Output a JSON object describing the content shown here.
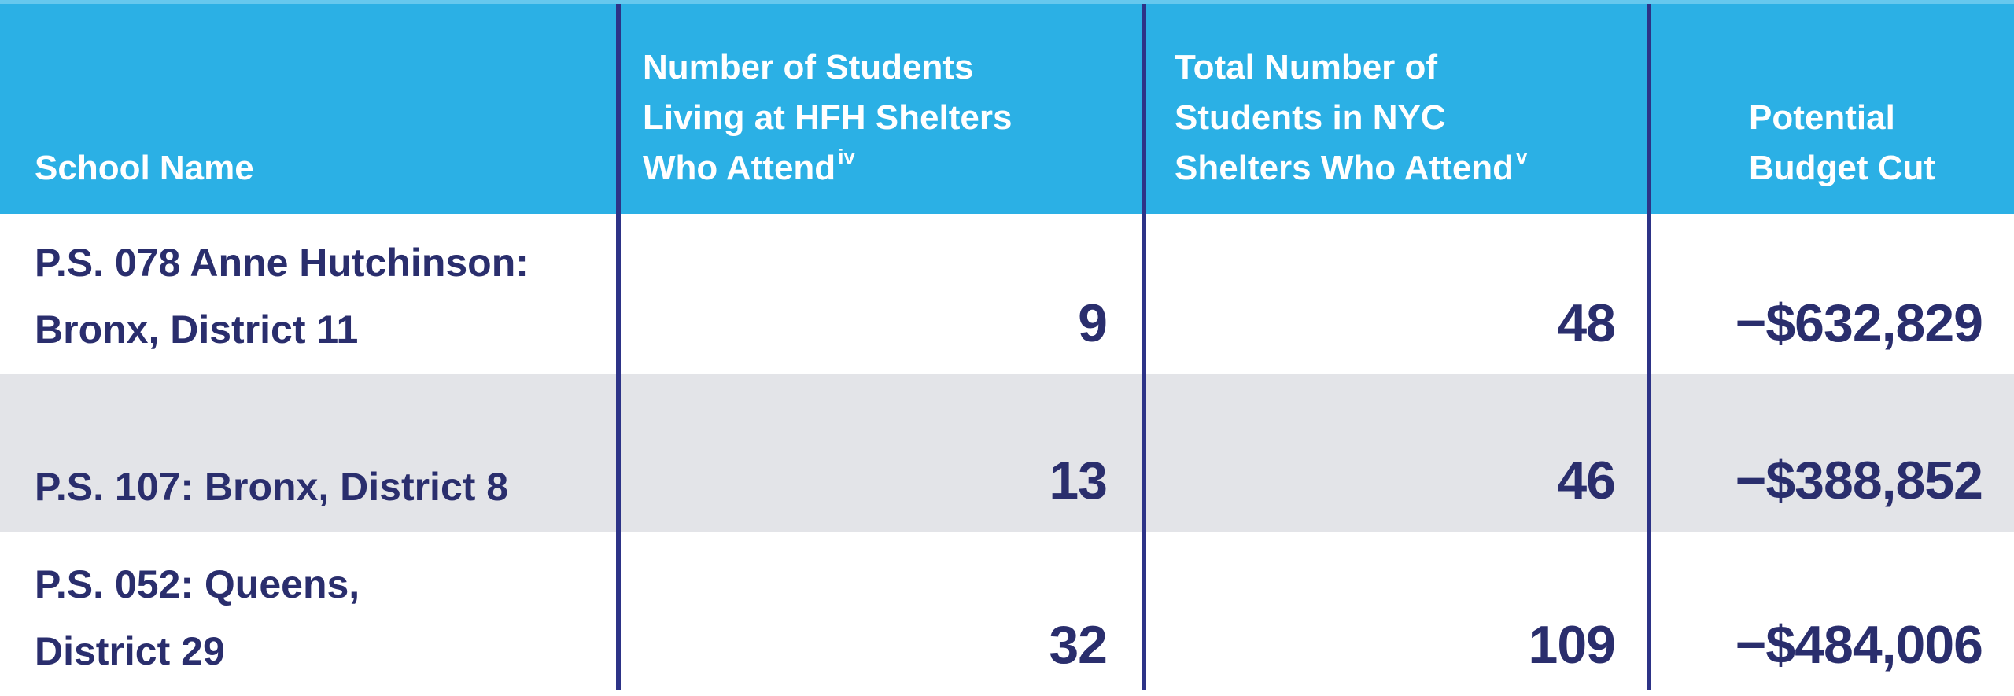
{
  "colors": {
    "header_bg": "#2BB0E5",
    "header_bg_top_edge": "#66C8EE",
    "header_text": "#FFFFFF",
    "divider": "#2D3387",
    "body_text": "#2A2E6D",
    "row_alt_bg": "#E3E4E8",
    "row_bg": "#FFFFFF"
  },
  "table": {
    "header": {
      "school": {
        "lines": [
          "School Name"
        ]
      },
      "hfh": {
        "lines": [
          "Number of Students",
          "Living at HFH Shelters",
          "Who Attend"
        ],
        "footnote": "iv"
      },
      "nyc": {
        "lines": [
          "Total Number of",
          "Students in NYC",
          "Shelters Who Attend"
        ],
        "footnote": "v"
      },
      "cut": {
        "lines": [
          "Potential",
          "Budget Cut"
        ]
      }
    },
    "rows": [
      {
        "school_lines": [
          "P.S. 078 Anne Hutchinson:",
          "Bronx, District 11"
        ],
        "hfh": "9",
        "nyc": "48",
        "cut": "−$632,829"
      },
      {
        "school_lines": [
          "P.S. 107: Bronx, District 8"
        ],
        "hfh": "13",
        "nyc": "46",
        "cut": "−$388,852"
      },
      {
        "school_lines": [
          "P.S. 052: Queens,",
          "District 29"
        ],
        "hfh": "32",
        "nyc": "109",
        "cut": "−$484,006"
      }
    ]
  },
  "chart_data": {
    "type": "table",
    "columns": [
      "School Name",
      "Number of Students Living at HFH Shelters Who Attend",
      "Total Number of Students in NYC Shelters Who Attend",
      "Potential Budget Cut"
    ],
    "footnote_markers": {
      "hfh_column": "iv",
      "nyc_column": "v"
    },
    "rows": [
      {
        "school_name": "P.S. 078 Anne Hutchinson: Bronx, District 11",
        "students_hfh_shelters": 9,
        "students_nyc_shelters": 48,
        "potential_budget_cut_label": "−$632,829",
        "potential_budget_cut_value": -632829
      },
      {
        "school_name": "P.S. 107: Bronx, District 8",
        "students_hfh_shelters": 13,
        "students_nyc_shelters": 46,
        "potential_budget_cut_label": "−$388,852",
        "potential_budget_cut_value": -388852
      },
      {
        "school_name": "P.S. 052: Queens, District 29",
        "students_hfh_shelters": 32,
        "students_nyc_shelters": 109,
        "potential_budget_cut_label": "−$484,006",
        "potential_budget_cut_value": -484006
      }
    ]
  }
}
